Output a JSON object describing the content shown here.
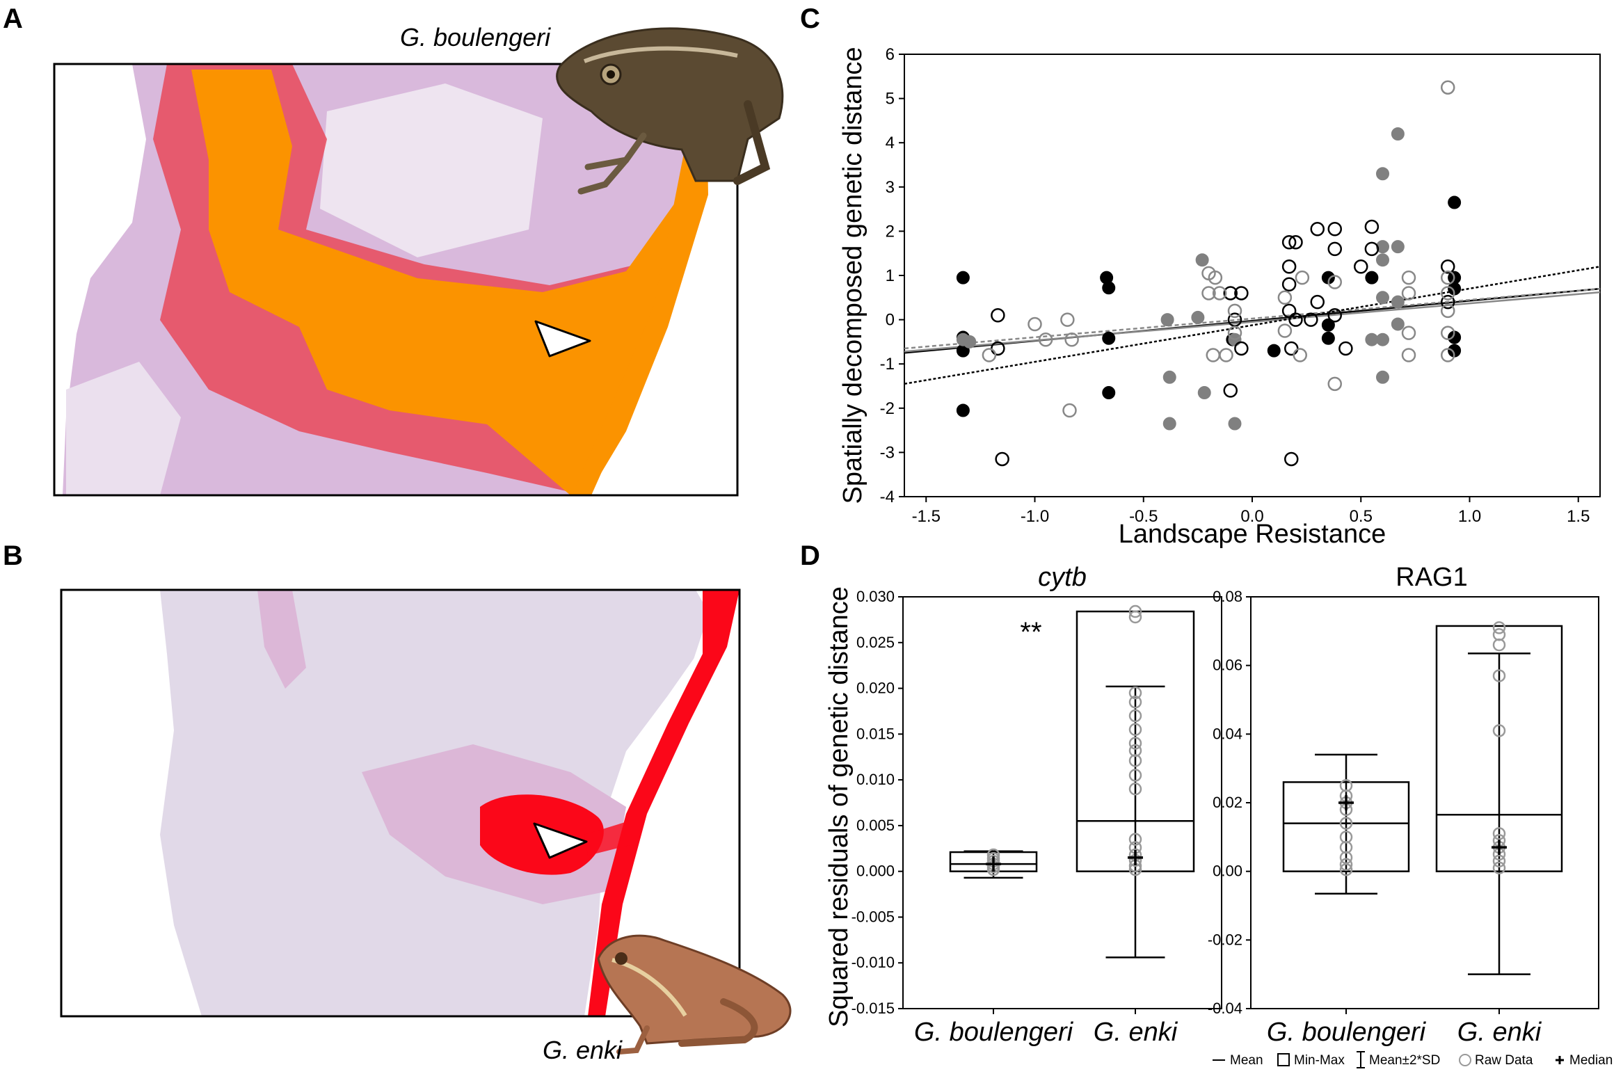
{
  "panels": {
    "a": "A",
    "b": "B",
    "c": "C",
    "d": "D"
  },
  "map_a": {
    "species_label": "G. boulengeri",
    "fill_color": "#fb9300",
    "edge_color": "#e8495a",
    "background_color": "#d9b9dc"
  },
  "map_b": {
    "species_label": "G. enki",
    "fill_color": "#fb0719",
    "background_color": "#e1d9e8"
  },
  "chart_data": [
    {
      "id": "C",
      "type": "scatter",
      "xlabel": "Landscape Resistance",
      "ylabel": "Spatially decomposed genetic distance",
      "xlim": [
        -1.6,
        1.6
      ],
      "ylim": [
        -4,
        6
      ],
      "xticks": [
        "-1.5",
        "-1.0",
        "-0.5",
        "0.0",
        "0.5",
        "1.0",
        "1.5"
      ],
      "yticks": [
        "-4",
        "-3",
        "-2",
        "-1",
        "0",
        "1",
        "2",
        "3",
        "4",
        "5",
        "6"
      ],
      "series": [
        {
          "name": "black filled",
          "style": "filled",
          "color": "#000000",
          "points": [
            [
              -1.33,
              0.95
            ],
            [
              -1.33,
              -0.4
            ],
            [
              -1.33,
              -0.7
            ],
            [
              -1.33,
              -2.05
            ],
            [
              -0.67,
              0.95
            ],
            [
              -0.66,
              0.72
            ],
            [
              -0.66,
              -0.42
            ],
            [
              -0.66,
              -1.65
            ],
            [
              -0.09,
              -0.45
            ],
            [
              0.1,
              -0.7
            ],
            [
              0.35,
              0.95
            ],
            [
              0.35,
              -0.12
            ],
            [
              0.35,
              -0.42
            ],
            [
              0.55,
              0.95
            ],
            [
              0.93,
              2.65
            ],
            [
              0.93,
              0.95
            ],
            [
              0.93,
              0.7
            ],
            [
              0.93,
              -0.4
            ],
            [
              0.93,
              -0.7
            ]
          ]
        },
        {
          "name": "grey filled",
          "style": "filled",
          "color": "#808080",
          "points": [
            [
              -1.33,
              -0.45
            ],
            [
              -1.3,
              -0.5
            ],
            [
              -0.39,
              0.0
            ],
            [
              -0.38,
              -1.3
            ],
            [
              -0.38,
              -2.35
            ],
            [
              -0.25,
              0.05
            ],
            [
              -0.23,
              1.35
            ],
            [
              -0.22,
              -1.65
            ],
            [
              -0.08,
              -0.45
            ],
            [
              -0.08,
              -2.35
            ],
            [
              0.55,
              -0.45
            ],
            [
              0.6,
              3.3
            ],
            [
              0.6,
              1.65
            ],
            [
              0.6,
              1.35
            ],
            [
              0.6,
              0.5
            ],
            [
              0.6,
              -0.45
            ],
            [
              0.6,
              -1.3
            ],
            [
              0.67,
              4.2
            ],
            [
              0.67,
              1.65
            ],
            [
              0.67,
              -0.1
            ],
            [
              0.67,
              0.4
            ]
          ]
        },
        {
          "name": "black open",
          "style": "open",
          "color": "#000000",
          "points": [
            [
              -1.17,
              0.1
            ],
            [
              -1.15,
              -3.15
            ],
            [
              -1.17,
              -0.65
            ],
            [
              -0.1,
              0.6
            ],
            [
              -0.1,
              -1.6
            ],
            [
              -0.08,
              0.0
            ],
            [
              -0.05,
              0.6
            ],
            [
              -0.05,
              -0.65
            ],
            [
              0.17,
              1.75
            ],
            [
              0.17,
              1.2
            ],
            [
              0.17,
              0.8
            ],
            [
              0.17,
              0.2
            ],
            [
              0.18,
              -0.65
            ],
            [
              0.18,
              -3.15
            ],
            [
              0.2,
              1.75
            ],
            [
              0.2,
              0.0
            ],
            [
              0.27,
              0.0
            ],
            [
              0.3,
              2.05
            ],
            [
              0.3,
              0.4
            ],
            [
              0.38,
              2.05
            ],
            [
              0.38,
              1.6
            ],
            [
              0.38,
              0.1
            ],
            [
              0.43,
              -0.65
            ],
            [
              0.5,
              1.2
            ],
            [
              0.55,
              2.1
            ],
            [
              0.55,
              1.6
            ],
            [
              0.9,
              1.2
            ],
            [
              0.9,
              0.4
            ]
          ]
        },
        {
          "name": "grey open",
          "style": "open",
          "color": "#888888",
          "points": [
            [
              -1.21,
              -0.8
            ],
            [
              -1.0,
              -0.1
            ],
            [
              -0.95,
              -0.45
            ],
            [
              -0.85,
              0.0
            ],
            [
              -0.84,
              -2.05
            ],
            [
              -0.83,
              -0.45
            ],
            [
              -0.2,
              1.05
            ],
            [
              -0.2,
              0.6
            ],
            [
              -0.18,
              -0.8
            ],
            [
              -0.17,
              0.95
            ],
            [
              -0.15,
              0.6
            ],
            [
              -0.12,
              -0.8
            ],
            [
              -0.08,
              0.2
            ],
            [
              -0.08,
              -0.3
            ],
            [
              0.15,
              -0.25
            ],
            [
              0.15,
              0.5
            ],
            [
              0.22,
              -0.8
            ],
            [
              0.23,
              0.95
            ],
            [
              0.38,
              0.85
            ],
            [
              0.38,
              -1.45
            ],
            [
              0.72,
              -0.8
            ],
            [
              0.72,
              0.95
            ],
            [
              0.72,
              0.6
            ],
            [
              0.72,
              -0.3
            ],
            [
              0.9,
              5.25
            ],
            [
              0.9,
              0.95
            ],
            [
              0.9,
              0.6
            ],
            [
              0.9,
              0.2
            ],
            [
              0.9,
              -0.3
            ],
            [
              0.9,
              -0.8
            ]
          ]
        }
      ],
      "regression_lines": [
        {
          "name": "solid black",
          "color": "#000000",
          "dash": "none",
          "x": [
            -1.6,
            1.6
          ],
          "y": [
            -0.75,
            0.7
          ]
        },
        {
          "name": "solid grey",
          "color": "#888888",
          "dash": "none",
          "x": [
            -1.6,
            1.6
          ],
          "y": [
            -0.72,
            0.62
          ]
        },
        {
          "name": "dashed grey",
          "color": "#888888",
          "dash": "6,4",
          "x": [
            -1.6,
            1.6
          ],
          "y": [
            -0.65,
            0.7
          ]
        },
        {
          "name": "dotted black",
          "color": "#000000",
          "dash": "4,3",
          "x": [
            -1.6,
            1.6
          ],
          "y": [
            -1.45,
            1.2
          ]
        }
      ]
    },
    {
      "id": "D-cytb",
      "type": "box",
      "title": "cytb",
      "ylabel": "Squared residuals of genetic distance",
      "ylim": [
        -0.015,
        0.03
      ],
      "yticks": [
        "-0.015",
        "-0.010",
        "-0.005",
        "0.000",
        "0.005",
        "0.010",
        "0.015",
        "0.020",
        "0.025",
        "0.030"
      ],
      "categories": [
        "G. boulengeri",
        "G. enki"
      ],
      "annotation": "**",
      "groups": [
        {
          "name": "G. boulengeri",
          "mean": 0.0008,
          "min": 0.0,
          "max": 0.0021,
          "sd_low": -0.0007,
          "sd_high": 0.0022,
          "median": 0.0008,
          "raw": [
            0.0002,
            0.0005,
            0.0008,
            0.0011,
            0.0014,
            0.0018
          ]
        },
        {
          "name": "G. enki",
          "mean": 0.0055,
          "min": 0.0,
          "max": 0.0284,
          "sd_low": -0.0094,
          "sd_high": 0.0202,
          "median": 0.0015,
          "raw": [
            0.0284,
            0.0278,
            0.0195,
            0.0185,
            0.017,
            0.0155,
            0.014,
            0.0132,
            0.0121,
            0.0105,
            0.009,
            0.0035,
            0.0026,
            0.0018,
            0.0012,
            0.0006,
            0.0002
          ]
        }
      ]
    },
    {
      "id": "D-RAG1",
      "type": "box",
      "title": "RAG1",
      "ylim": [
        -0.04,
        0.08
      ],
      "yticks": [
        "-0.04",
        "-0.02",
        "0.00",
        "0.02",
        "0.04",
        "0.06",
        "0.08"
      ],
      "categories": [
        "G. boulengeri",
        "G. enki"
      ],
      "groups": [
        {
          "name": "G. boulengeri",
          "mean": 0.014,
          "min": 0.0,
          "max": 0.026,
          "sd_low": -0.0065,
          "sd_high": 0.034,
          "median": 0.02,
          "raw": [
            0.025,
            0.022,
            0.02,
            0.018,
            0.014,
            0.01,
            0.007,
            0.004,
            0.002,
            0.0005
          ]
        },
        {
          "name": "G. enki",
          "mean": 0.0165,
          "min": 0.0,
          "max": 0.0715,
          "sd_low": -0.03,
          "sd_high": 0.0635,
          "median": 0.007,
          "raw": [
            0.071,
            0.069,
            0.066,
            0.057,
            0.041,
            0.011,
            0.009,
            0.007,
            0.005,
            0.003,
            0.001
          ]
        }
      ]
    }
  ],
  "legend": {
    "mean": "Mean",
    "minmax": "Min-Max",
    "sd": "Mean±2*SD",
    "raw": "Raw Data",
    "median": "Median"
  }
}
